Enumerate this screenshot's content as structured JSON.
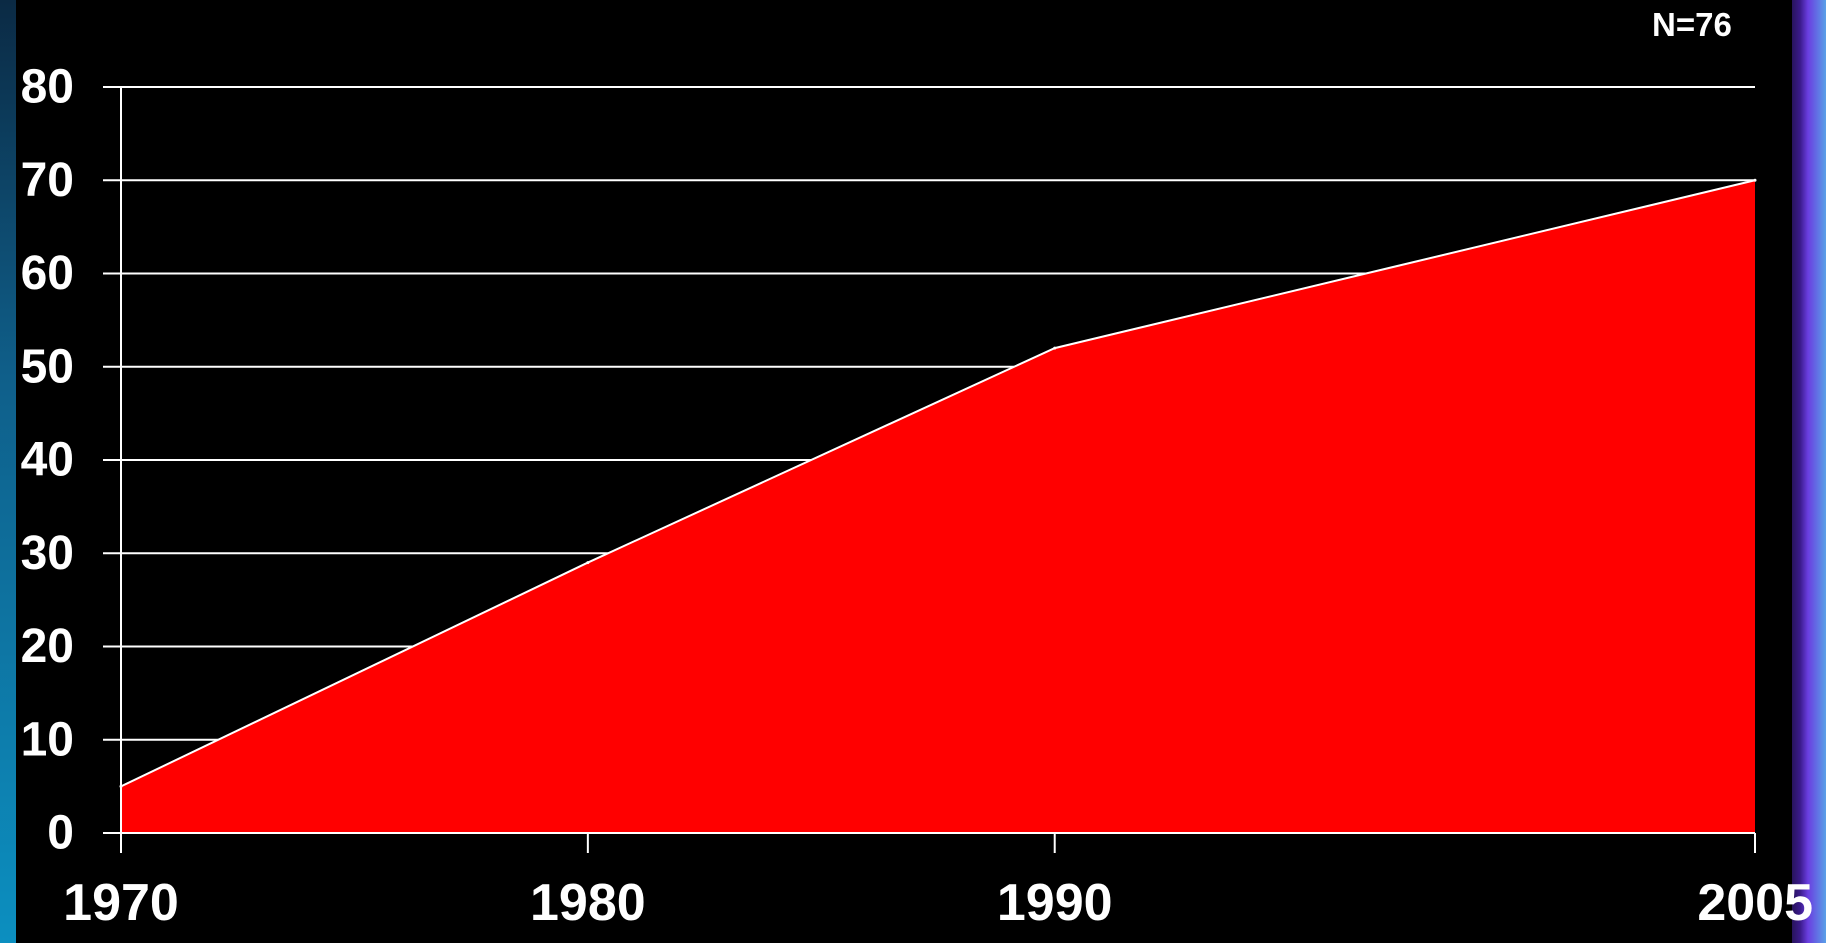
{
  "annotation": "N=76",
  "chart_data": {
    "type": "area",
    "x": [
      1970,
      1980,
      1990,
      2005
    ],
    "series": [
      {
        "values": [
          5,
          29,
          52,
          70
        ],
        "color": "#ff0000"
      }
    ],
    "xticks": [
      "1970",
      "1980",
      "1990",
      "2005"
    ],
    "yticks": [
      "0",
      "10",
      "20",
      "30",
      "40",
      "50",
      "60",
      "70",
      "80"
    ],
    "xlim": [
      1970,
      2005
    ],
    "ylim": [
      0,
      80
    ],
    "grid": true,
    "line_color": "#ffffff",
    "background": "#000000"
  }
}
